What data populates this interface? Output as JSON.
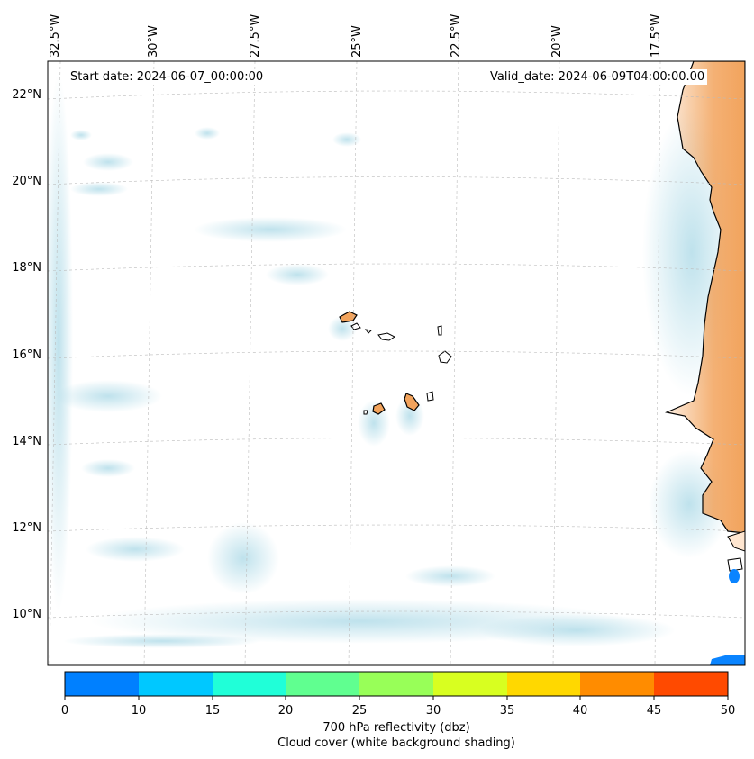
{
  "map": {
    "start_date": "Start date: 2024-06-07_00:00:00",
    "valid_date": "Valid_date: 2024-06-09T04:00:00.00",
    "longitude_labels": [
      "32.5°W",
      "30°W",
      "27.5°W",
      "25°W",
      "22.5°W",
      "20°W",
      "17.5°W"
    ],
    "latitude_labels": [
      "22°N",
      "20°N",
      "18°N",
      "16°N",
      "14°N",
      "12°N",
      "10°N"
    ],
    "region": "Cabo Verde and West African coast",
    "colors": {
      "cloud": "#a9d8e6",
      "land_high": "#f2a35c",
      "ocean": "#ffffff",
      "coast": "#000000",
      "low_refl": "#0a84ff"
    }
  },
  "colorbar": {
    "ticks": [
      "0",
      "10",
      "15",
      "20",
      "25",
      "30",
      "35",
      "40",
      "45",
      "50"
    ],
    "colors": [
      "#0080ff",
      "#00c8ff",
      "#20ffd8",
      "#60ff90",
      "#98ff58",
      "#d8ff20",
      "#ffd800",
      "#ff8c00",
      "#ff4a00"
    ],
    "label": "700 hPa reflectivity (dbz)",
    "sublabel": "Cloud cover (white background shading)"
  }
}
